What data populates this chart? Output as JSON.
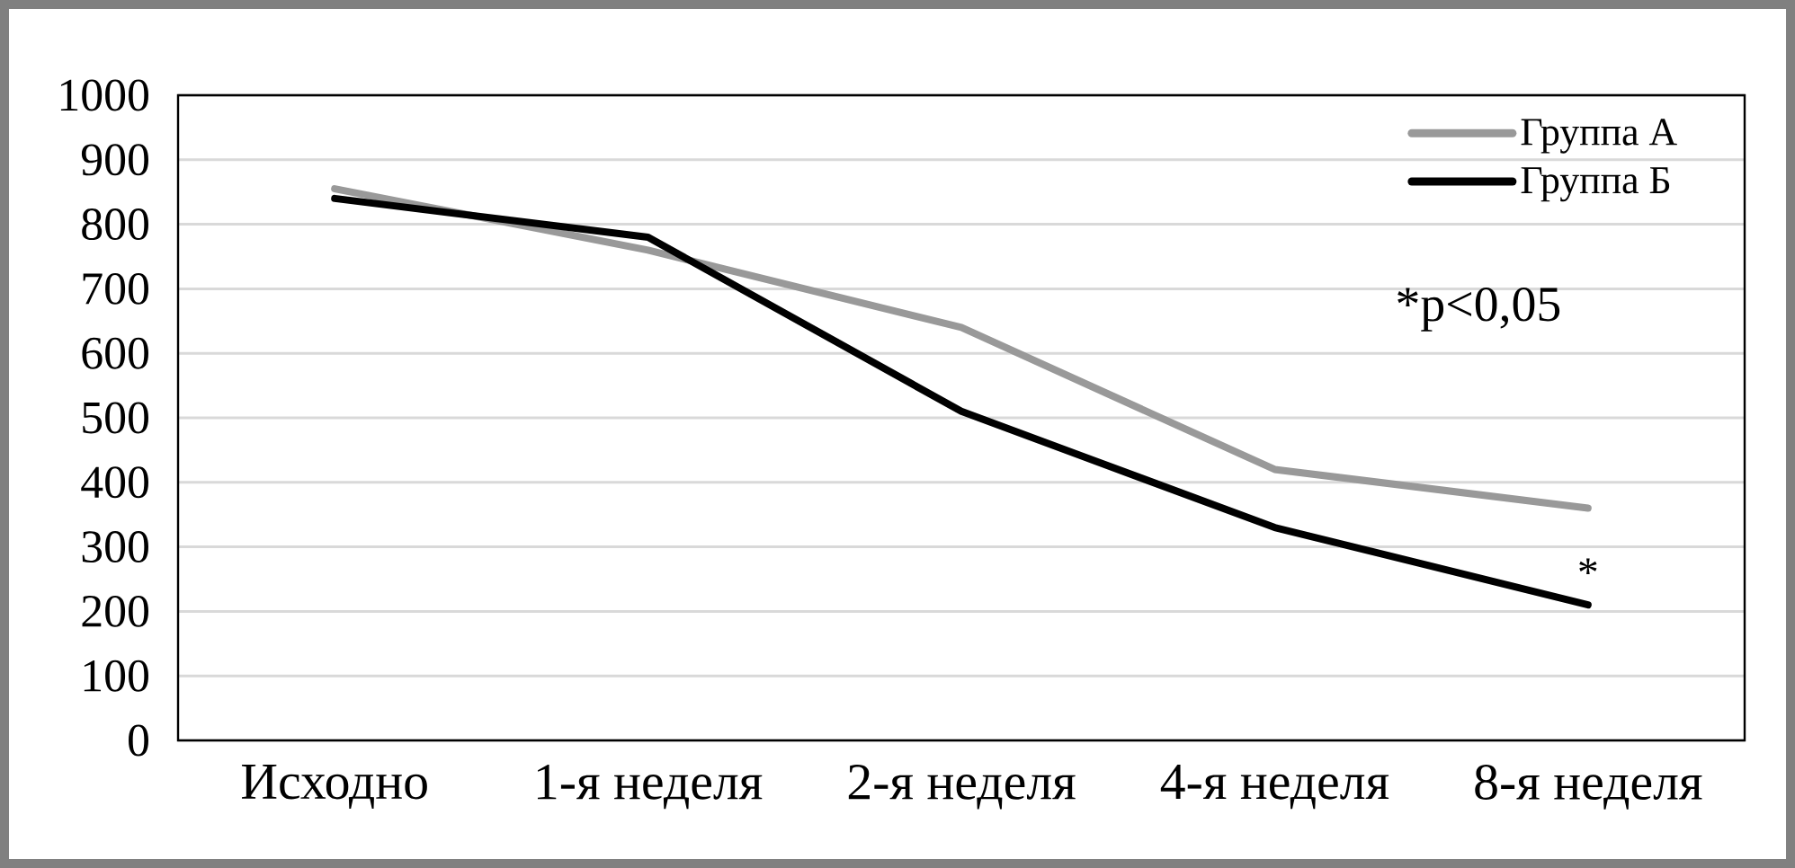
{
  "chart_data": {
    "type": "line",
    "categories": [
      "Исходно",
      "1-я неделя",
      "2-я неделя",
      "4-я неделя",
      "8-я неделя"
    ],
    "series": [
      {
        "name": "Группа А",
        "color": "#999999",
        "values": [
          855,
          760,
          640,
          420,
          360
        ]
      },
      {
        "name": "Группа Б",
        "color": "#000000",
        "values": [
          840,
          780,
          510,
          330,
          210
        ]
      }
    ],
    "ylim": [
      0,
      1000
    ],
    "yticks": [
      0,
      100,
      200,
      300,
      400,
      500,
      600,
      700,
      800,
      900,
      1000
    ],
    "grid": "y",
    "legend": "top right",
    "line_style": "solid",
    "annotations": [
      "*p<0,05",
      {
        "text": "*",
        "x": "8-я неделя",
        "y": 210
      }
    ]
  }
}
